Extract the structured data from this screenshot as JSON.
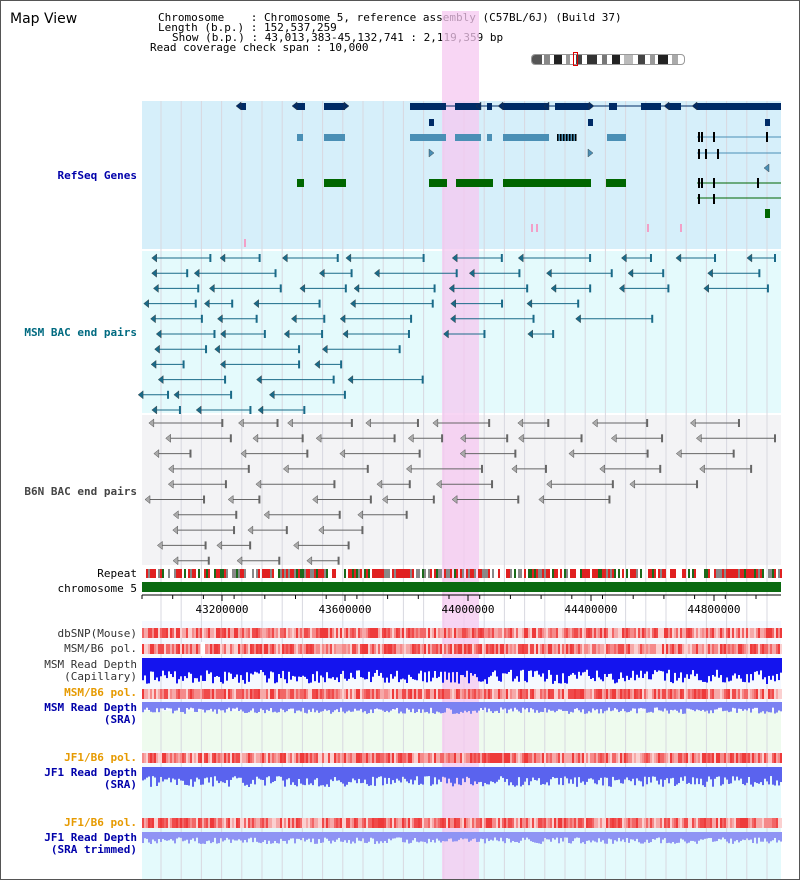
{
  "view_title": "Map View",
  "info": {
    "chromosome_line": "Chromosome    : Chromosome 5, reference assembly (C57BL/6J) (Build 37)",
    "length_line": "Length (b.p.) : 152,537,259",
    "show_line": "Show (b.p.) : 43,013,383-45,132,741 : 2,119,359 bp",
    "read_line": "Read coverage check span : 10,000"
  },
  "track_labels": {
    "refseq": "RefSeq Genes",
    "msm_bac": "MSM BAC end pairs",
    "b6n_bac": "B6N BAC end pairs",
    "repeat": "Repeat",
    "chromosome": "chromosome 5",
    "dbsnp": "dbSNP(Mouse)",
    "msm_b6_pol": "MSM/B6 pol.",
    "msm_read_depth_cap": "MSM Read Depth\n(Capillary)",
    "msm_b6_pol_sra": "MSM/B6 pol.",
    "msm_read_depth_sra": "MSM Read Depth\n(SRA)",
    "jf1_b6_pol": "JF1/B6 pol.",
    "jf1_read_depth_sra": "JF1 Read Depth\n(SRA)",
    "jf1_b6_pol_trim": "JF1/B6 pol.",
    "jf1_read_depth_trim": "JF1 Read Depth\n(SRA trimmed)"
  },
  "axis": {
    "unit": "bp",
    "ticks": [
      "43200000",
      "43600000",
      "44000000",
      "44400000",
      "44800000"
    ]
  },
  "colors": {
    "refseq_bg": "#d6effa",
    "msm_bac_bg": "#e4fafc",
    "b6n_bac_bg": "#f3f3f5",
    "highlight": "#f5c8f0",
    "gene_dark": "#002b66",
    "gene_mid": "#4a8fb5",
    "gene_green": "#006600",
    "msm_line": "#1a6a88",
    "b6n_line": "#666666",
    "chromosome_bar": "#0a6a10",
    "snp_red": "#f24a4a",
    "depth_blue": "#1414ee",
    "depth_lavender": "#7b82f2",
    "label_blue": "#0000aa",
    "label_teal": "#006a80",
    "label_orange": "#e69a00"
  }
}
